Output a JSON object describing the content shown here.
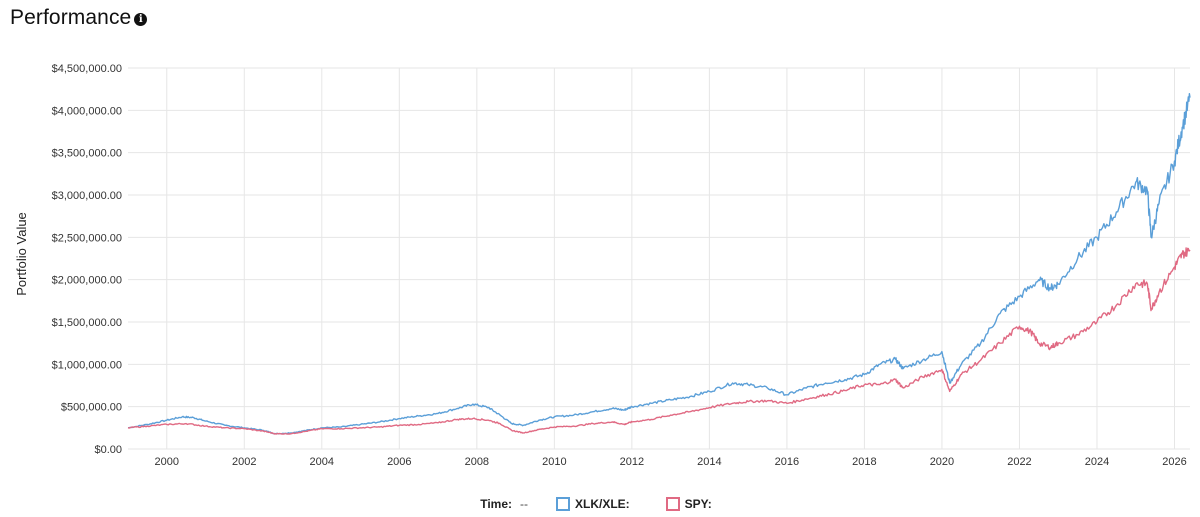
{
  "header": {
    "title": "Performance",
    "info_icon": "info-icon"
  },
  "legend": {
    "time_label": "Time:",
    "time_value": "--",
    "items": [
      {
        "label": "XLK/XLE:",
        "value": "",
        "color": "#5b9fd8"
      },
      {
        "label": "SPY:",
        "value": "",
        "color": "#e06a83"
      }
    ]
  },
  "chart_data": {
    "type": "line",
    "ylabel": "Portfolio Value",
    "xlim": [
      1999.0,
      2026.4
    ],
    "ylim": [
      0,
      4500000
    ],
    "x_ticks": [
      2000,
      2002,
      2004,
      2006,
      2008,
      2010,
      2012,
      2014,
      2016,
      2018,
      2020,
      2022,
      2024,
      2026
    ],
    "y_ticks": [
      0,
      500000,
      1000000,
      1500000,
      2000000,
      2500000,
      3000000,
      3500000,
      4000000,
      4500000
    ],
    "y_tick_labels": [
      "$0.00",
      "$500,000.00",
      "$1,000,000.00",
      "$1,500,000.00",
      "$2,000,000.00",
      "$2,500,000.00",
      "$3,000,000.00",
      "$3,500,000.00",
      "$4,000,000.00",
      "$4,500,000.00"
    ],
    "grid": true,
    "series": [
      {
        "name": "XLK/XLE",
        "color": "#5b9fd8",
        "points": [
          [
            1999.0,
            250000
          ],
          [
            1999.5,
            290000
          ],
          [
            2000.0,
            340000
          ],
          [
            2000.4,
            380000
          ],
          [
            2000.7,
            370000
          ],
          [
            2001.0,
            330000
          ],
          [
            2001.5,
            280000
          ],
          [
            2002.0,
            250000
          ],
          [
            2002.5,
            220000
          ],
          [
            2002.8,
            180000
          ],
          [
            2003.2,
            190000
          ],
          [
            2003.6,
            220000
          ],
          [
            2004.0,
            250000
          ],
          [
            2004.5,
            260000
          ],
          [
            2005.0,
            290000
          ],
          [
            2005.5,
            320000
          ],
          [
            2006.0,
            360000
          ],
          [
            2006.5,
            390000
          ],
          [
            2007.0,
            420000
          ],
          [
            2007.5,
            480000
          ],
          [
            2007.9,
            530000
          ],
          [
            2008.3,
            490000
          ],
          [
            2008.6,
            400000
          ],
          [
            2008.9,
            300000
          ],
          [
            2009.2,
            280000
          ],
          [
            2009.6,
            340000
          ],
          [
            2010.0,
            380000
          ],
          [
            2010.5,
            400000
          ],
          [
            2011.0,
            440000
          ],
          [
            2011.5,
            480000
          ],
          [
            2011.8,
            460000
          ],
          [
            2012.0,
            500000
          ],
          [
            2012.5,
            540000
          ],
          [
            2013.0,
            580000
          ],
          [
            2013.5,
            620000
          ],
          [
            2014.0,
            680000
          ],
          [
            2014.6,
            780000
          ],
          [
            2015.0,
            760000
          ],
          [
            2015.5,
            720000
          ],
          [
            2016.0,
            640000
          ],
          [
            2016.5,
            720000
          ],
          [
            2017.0,
            780000
          ],
          [
            2017.5,
            820000
          ],
          [
            2018.0,
            880000
          ],
          [
            2018.4,
            1000000
          ],
          [
            2018.8,
            1060000
          ],
          [
            2019.0,
            950000
          ],
          [
            2019.5,
            1050000
          ],
          [
            2020.0,
            1150000
          ],
          [
            2020.2,
            780000
          ],
          [
            2020.5,
            1000000
          ],
          [
            2021.0,
            1250000
          ],
          [
            2021.5,
            1600000
          ],
          [
            2022.0,
            1800000
          ],
          [
            2022.5,
            2000000
          ],
          [
            2022.8,
            1900000
          ],
          [
            2023.0,
            1950000
          ],
          [
            2023.5,
            2250000
          ],
          [
            2024.0,
            2500000
          ],
          [
            2024.5,
            2800000
          ],
          [
            2025.0,
            3150000
          ],
          [
            2025.3,
            3050000
          ],
          [
            2025.4,
            2500000
          ],
          [
            2025.6,
            2900000
          ],
          [
            2026.0,
            3400000
          ],
          [
            2026.2,
            3800000
          ],
          [
            2026.4,
            4150000
          ]
        ]
      },
      {
        "name": "SPY",
        "color": "#e06a83",
        "points": [
          [
            1999.0,
            250000
          ],
          [
            1999.5,
            270000
          ],
          [
            2000.0,
            290000
          ],
          [
            2000.5,
            300000
          ],
          [
            2001.0,
            270000
          ],
          [
            2001.5,
            250000
          ],
          [
            2002.0,
            240000
          ],
          [
            2002.5,
            210000
          ],
          [
            2002.8,
            180000
          ],
          [
            2003.2,
            180000
          ],
          [
            2003.6,
            210000
          ],
          [
            2004.0,
            240000
          ],
          [
            2004.5,
            240000
          ],
          [
            2005.0,
            250000
          ],
          [
            2005.5,
            260000
          ],
          [
            2006.0,
            280000
          ],
          [
            2006.5,
            290000
          ],
          [
            2007.0,
            310000
          ],
          [
            2007.5,
            350000
          ],
          [
            2007.9,
            360000
          ],
          [
            2008.3,
            340000
          ],
          [
            2008.6,
            300000
          ],
          [
            2008.9,
            220000
          ],
          [
            2009.2,
            190000
          ],
          [
            2009.6,
            230000
          ],
          [
            2010.0,
            260000
          ],
          [
            2010.5,
            270000
          ],
          [
            2011.0,
            300000
          ],
          [
            2011.5,
            320000
          ],
          [
            2011.8,
            290000
          ],
          [
            2012.0,
            320000
          ],
          [
            2012.5,
            350000
          ],
          [
            2013.0,
            400000
          ],
          [
            2013.5,
            440000
          ],
          [
            2014.0,
            490000
          ],
          [
            2014.6,
            540000
          ],
          [
            2015.0,
            560000
          ],
          [
            2015.5,
            570000
          ],
          [
            2016.0,
            540000
          ],
          [
            2016.5,
            590000
          ],
          [
            2017.0,
            640000
          ],
          [
            2017.5,
            690000
          ],
          [
            2018.0,
            760000
          ],
          [
            2018.4,
            760000
          ],
          [
            2018.8,
            820000
          ],
          [
            2019.0,
            720000
          ],
          [
            2019.5,
            850000
          ],
          [
            2020.0,
            940000
          ],
          [
            2020.2,
            680000
          ],
          [
            2020.5,
            880000
          ],
          [
            2021.0,
            1050000
          ],
          [
            2021.5,
            1250000
          ],
          [
            2022.0,
            1450000
          ],
          [
            2022.3,
            1380000
          ],
          [
            2022.5,
            1250000
          ],
          [
            2022.8,
            1200000
          ],
          [
            2023.0,
            1250000
          ],
          [
            2023.5,
            1350000
          ],
          [
            2024.0,
            1500000
          ],
          [
            2024.5,
            1700000
          ],
          [
            2025.0,
            1950000
          ],
          [
            2025.3,
            1950000
          ],
          [
            2025.4,
            1650000
          ],
          [
            2025.6,
            1850000
          ],
          [
            2026.0,
            2150000
          ],
          [
            2026.2,
            2300000
          ],
          [
            2026.4,
            2350000
          ]
        ]
      }
    ]
  }
}
